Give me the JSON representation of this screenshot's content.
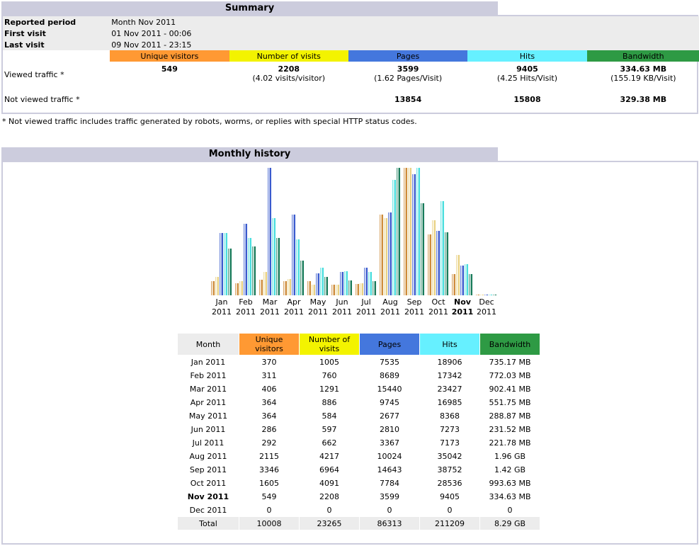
{
  "summary": {
    "title": "Summary",
    "reported_period_label": "Reported period",
    "reported_period_value": "Month Nov 2011",
    "first_visit_label": "First visit",
    "first_visit_value": "01 Nov 2011 - 00:06",
    "last_visit_label": "Last visit",
    "last_visit_value": "09 Nov 2011 - 23:15",
    "headers": [
      "Unique visitors",
      "Number of visits",
      "Pages",
      "Hits",
      "Bandwidth"
    ],
    "viewed_label": "Viewed traffic *",
    "viewed": {
      "unique": "549",
      "visits": "2208",
      "visits_sub": "(4.02 visits/visitor)",
      "pages": "3599",
      "pages_sub": "(1.62 Pages/Visit)",
      "hits": "9405",
      "hits_sub": "(4.25 Hits/Visit)",
      "bandwidth": "334.63 MB",
      "bandwidth_sub": "(155.19 KB/Visit)"
    },
    "not_viewed_label": "Not viewed traffic *",
    "not_viewed": {
      "pages": "13854",
      "hits": "15808",
      "bandwidth": "329.38 MB"
    },
    "note": "* Not viewed traffic includes traffic generated by robots, worms, or replies with special HTTP status codes."
  },
  "history": {
    "title": "Monthly history",
    "columns": [
      "Month",
      "Unique visitors",
      "Number of visits",
      "Pages",
      "Hits",
      "Bandwidth"
    ],
    "rows": [
      [
        "Jan 2011",
        "370",
        "1005",
        "7535",
        "18906",
        "735.17 MB"
      ],
      [
        "Feb 2011",
        "311",
        "760",
        "8689",
        "17342",
        "772.03 MB"
      ],
      [
        "Mar 2011",
        "406",
        "1291",
        "15440",
        "23427",
        "902.41 MB"
      ],
      [
        "Apr 2011",
        "364",
        "886",
        "9745",
        "16985",
        "551.75 MB"
      ],
      [
        "May 2011",
        "364",
        "584",
        "2677",
        "8368",
        "288.87 MB"
      ],
      [
        "Jun 2011",
        "286",
        "597",
        "2810",
        "7273",
        "231.52 MB"
      ],
      [
        "Jul 2011",
        "292",
        "662",
        "3367",
        "7173",
        "221.78 MB"
      ],
      [
        "Aug 2011",
        "2115",
        "4217",
        "10024",
        "35042",
        "1.96 GB"
      ],
      [
        "Sep 2011",
        "3346",
        "6964",
        "14643",
        "38752",
        "1.42 GB"
      ],
      [
        "Oct 2011",
        "1605",
        "4091",
        "7784",
        "28536",
        "993.63 MB"
      ],
      [
        "Nov 2011",
        "549",
        "2208",
        "3599",
        "9405",
        "334.63 MB"
      ],
      [
        "Dec 2011",
        "0",
        "0",
        "0",
        "0",
        "0"
      ]
    ],
    "total": [
      "Total",
      "10008",
      "23265",
      "86313",
      "211209",
      "8.29 GB"
    ],
    "current_month": "Nov 2011"
  },
  "chart_data": {
    "type": "bar",
    "categories": [
      "Jan",
      "Feb",
      "Mar",
      "Apr",
      "May",
      "Jun",
      "Jul",
      "Aug",
      "Sep",
      "Oct",
      "Nov",
      "Dec"
    ],
    "category_years": [
      "2011",
      "2011",
      "2011",
      "2011",
      "2011",
      "2011",
      "2011",
      "2011",
      "2011",
      "2011",
      "2011",
      "2011"
    ],
    "highlight": "Nov",
    "series": [
      {
        "name": "Unique visitors",
        "color": "#cc8833",
        "values": [
          370,
          311,
          406,
          364,
          364,
          286,
          292,
          2115,
          3346,
          1605,
          549,
          0
        ]
      },
      {
        "name": "Number of visits",
        "color": "#e8d080",
        "values": [
          1005,
          760,
          1291,
          886,
          584,
          597,
          662,
          4217,
          6964,
          4091,
          2208,
          0
        ]
      },
      {
        "name": "Pages",
        "color": "#3355cc",
        "values": [
          7535,
          8689,
          15440,
          9745,
          2677,
          2810,
          3367,
          10024,
          14643,
          7784,
          3599,
          0
        ]
      },
      {
        "name": "Hits",
        "color": "#44dddd",
        "values": [
          18906,
          17342,
          23427,
          16985,
          8368,
          7273,
          7173,
          35042,
          38752,
          28536,
          9405,
          0
        ]
      },
      {
        "name": "Bandwidth",
        "color": "#117755",
        "values": [
          735.17,
          772.03,
          902.41,
          551.75,
          288.87,
          231.52,
          221.78,
          2007.04,
          1454.08,
          993.64,
          334.63,
          0
        ]
      }
    ]
  }
}
